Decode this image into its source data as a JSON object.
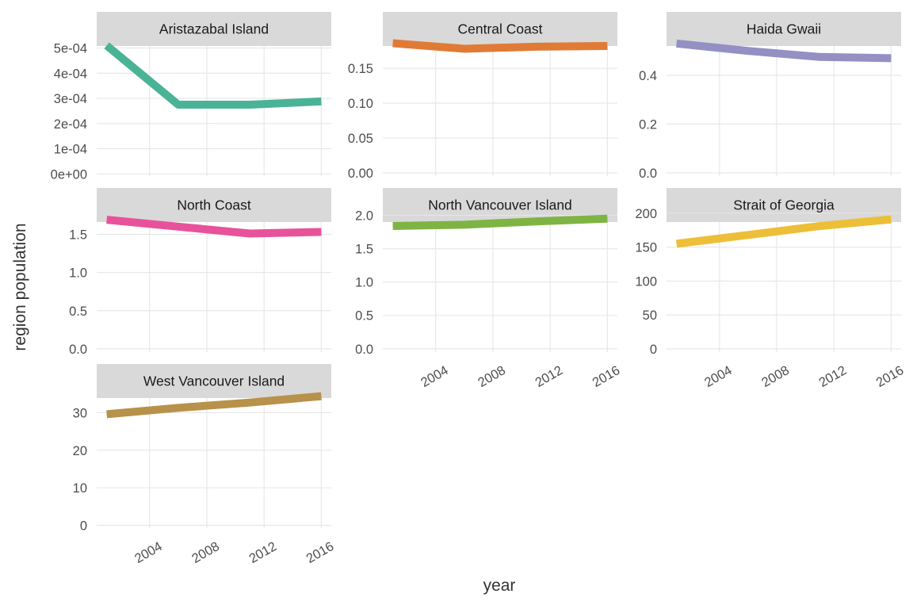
{
  "chart_data": {
    "type": "line",
    "xlabel": "year",
    "ylabel": "region population",
    "x_ticks": [
      2004,
      2008,
      2012,
      2016
    ],
    "x_tick_labels": [
      "2004",
      "2008",
      "2012",
      "2016"
    ],
    "xlim": [
      2000.3,
      2016.7
    ],
    "x": [
      2001,
      2006,
      2011,
      2016
    ],
    "grid": true,
    "legend": "none",
    "facets": [
      {
        "name": "Aristazabal Island",
        "color": "#4AB395",
        "values": [
          0.00051,
          0.000275,
          0.000275,
          0.000288
        ],
        "ylim": [
          -8.3e-06,
          0.000508
        ],
        "y_ticks": [
          0,
          0.0001,
          0.0002,
          0.0003,
          0.0004,
          0.0005
        ],
        "y_tick_labels": [
          "0e+00",
          "1e-04",
          "2e-04",
          "3e-04",
          "4e-04",
          "5e-04"
        ]
      },
      {
        "name": "Central Coast",
        "color": "#E07B36",
        "values": [
          0.186,
          0.178,
          0.181,
          0.182
        ],
        "ylim": [
          -0.0045,
          0.182
        ],
        "y_ticks": [
          0,
          0.05,
          0.1,
          0.15
        ],
        "y_tick_labels": [
          "0.00",
          "0.05",
          "0.10",
          "0.15"
        ]
      },
      {
        "name": "Haida Gwaii",
        "color": "#9490C4",
        "values": [
          0.53,
          0.5,
          0.475,
          0.47
        ],
        "ylim": [
          -0.013,
          0.52
        ],
        "y_ticks": [
          0,
          0.2,
          0.4
        ],
        "y_tick_labels": [
          "0.0",
          "0.2",
          "0.4"
        ]
      },
      {
        "name": "North Coast",
        "color": "#E8529A",
        "values": [
          1.69,
          1.6,
          1.51,
          1.53
        ],
        "ylim": [
          -0.042,
          1.66
        ],
        "y_ticks": [
          0,
          0.5,
          1.0,
          1.5
        ],
        "y_tick_labels": [
          "0.0",
          "0.5",
          "1.0",
          "1.5"
        ]
      },
      {
        "name": "North Vancouver Island",
        "color": "#7EB443",
        "values": [
          1.84,
          1.86,
          1.91,
          1.95
        ],
        "ylim": [
          -0.05,
          1.9
        ],
        "y_ticks": [
          0,
          0.5,
          1.0,
          1.5,
          2.0
        ],
        "y_tick_labels": [
          "0.0",
          "0.5",
          "1.0",
          "1.5",
          "2.0"
        ]
      },
      {
        "name": "Strait of Georgia",
        "color": "#EDBE37",
        "values": [
          155,
          168,
          181,
          191
        ],
        "ylim": [
          -4.7,
          187
        ],
        "y_ticks": [
          0,
          50,
          100,
          150,
          200
        ],
        "y_tick_labels": [
          "0",
          "50",
          "100",
          "150",
          "200"
        ]
      },
      {
        "name": "West Vancouver Island",
        "color": "#B8914A",
        "values": [
          29.6,
          31.3,
          32.7,
          34.4
        ],
        "ylim": [
          -0.75,
          33.9
        ],
        "y_ticks": [
          0,
          10,
          20,
          30
        ],
        "y_tick_labels": [
          "0",
          "10",
          "20",
          "30"
        ]
      }
    ]
  }
}
